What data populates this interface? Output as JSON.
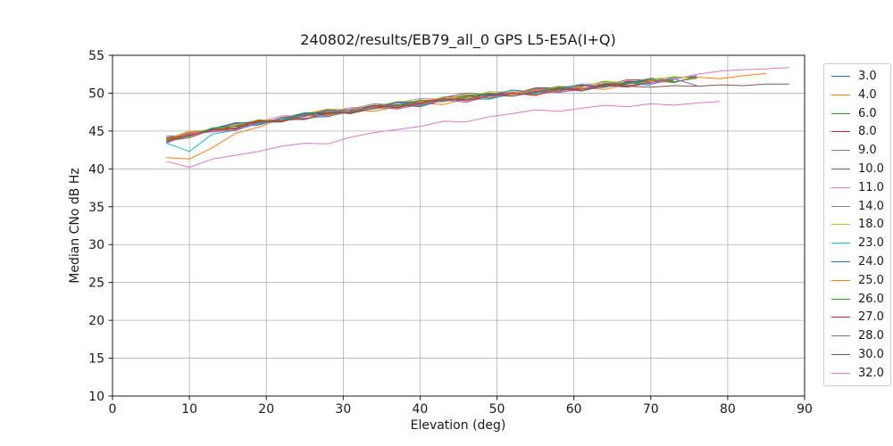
{
  "chart_data": {
    "type": "line",
    "title": "240802/results/EB79_all_0 GPS L5-E5A(I+Q)",
    "xlabel": "Elevation (deg)",
    "ylabel": "Median CNo dB Hz",
    "xlim": [
      0,
      90
    ],
    "ylim": [
      10,
      55
    ],
    "x_ticks": [
      0,
      10,
      20,
      30,
      40,
      50,
      60,
      70,
      80,
      90
    ],
    "y_ticks": [
      10,
      15,
      20,
      25,
      30,
      35,
      40,
      45,
      50,
      55
    ],
    "grid": true,
    "grid_color": "#b0b0b0",
    "legend_position": "right-outside",
    "x_start": 7,
    "x_step": 3,
    "series": [
      {
        "name": "3.0",
        "color": "#1f77b4",
        "y": [
          43.9,
          44.3,
          45.4,
          45.6,
          45.8,
          46.7,
          46.9,
          47.7,
          47.5,
          48.2,
          48.7,
          48.4,
          49.1,
          49.6,
          49.3,
          50.0,
          50.1,
          50.8,
          50.5,
          51.0,
          51.5,
          51.2,
          51.8
        ]
      },
      {
        "name": "4.0",
        "color": "#ff7f0e",
        "y": [
          41.5,
          41.3,
          42.8,
          44.7,
          45.5,
          46.7,
          46.6,
          47.2,
          47.8,
          47.6,
          48.2,
          48.7,
          48.5,
          49.3,
          49.4,
          50.0,
          49.8,
          50.3,
          50.7,
          50.5,
          51.2,
          51.7,
          51.4
        ]
      },
      {
        "name": "6.0",
        "color": "#2ca02c",
        "y": [
          43.6,
          44.8,
          45.1,
          46.1,
          46.0,
          46.7,
          47.4,
          47.1,
          47.8,
          48.4,
          48.1,
          48.9,
          49.1,
          49.8,
          49.6,
          50.0,
          50.5,
          50.3,
          50.9,
          51.5,
          51.3,
          51.4,
          52.1,
          52.1
        ]
      },
      {
        "name": "8.0",
        "color": "#d62728",
        "y": [
          43.7,
          44.9,
          44.9,
          45.7,
          46.4,
          46.2,
          47.0,
          47.5,
          47.3,
          48.2,
          48.3,
          49.0,
          48.9,
          49.4,
          49.9,
          49.6,
          50.3,
          50.9,
          50.6,
          50.8,
          51.6,
          51.5
        ]
      },
      {
        "name": "9.0",
        "color": "#9467bd",
        "y": [
          43.5,
          44.5,
          45.3,
          45.2,
          46.0,
          46.6,
          46.5,
          47.3,
          47.5,
          48.3,
          48.1,
          48.6,
          49.2,
          49.0,
          49.7,
          50.2,
          50.0,
          50.2,
          50.9,
          50.9,
          51.3,
          51.2,
          51.9,
          52.3
        ]
      },
      {
        "name": "10.0",
        "color": "#8c564b",
        "y": [
          44.3,
          44.4,
          45.3,
          46.0,
          45.9,
          46.8,
          47.1,
          47.8,
          47.7,
          48.3,
          48.8,
          48.6,
          49.4,
          50.0,
          49.8,
          49.9,
          50.7,
          50.7,
          51.0,
          51.0,
          51.8,
          51.7,
          51.6
        ]
      },
      {
        "name": "11.0",
        "color": "#e377c2",
        "y": [
          44.0,
          44.9,
          44.9,
          45.9,
          46.2,
          47.0,
          47.0,
          47.5,
          48.1,
          48.0,
          48.7,
          49.3,
          49.2,
          49.4,
          50.2,
          50.1,
          50.5,
          50.5,
          51.2,
          51.2,
          51.2,
          51.9,
          51.8,
          52.5,
          52.9,
          53.1,
          53.2,
          53.4
        ]
      },
      {
        "name": "14.0",
        "color": "#7f7f7f",
        "y": [
          43.5,
          44.7,
          45.1,
          46.0,
          46.0,
          46.6,
          47.3,
          47.1,
          47.9,
          48.6,
          48.4,
          48.6,
          49.5,
          49.5,
          49.9,
          49.8,
          50.6,
          50.6,
          50.5,
          51.3,
          51.3,
          52.0,
          51.6
        ]
      },
      {
        "name": "18.0",
        "color": "#bcbd22",
        "y": [
          43.9,
          45.0,
          45.1,
          45.8,
          46.5,
          46.4,
          47.3,
          47.9,
          47.8,
          48.1,
          48.9,
          48.9,
          49.4,
          49.4,
          50.2,
          50.1,
          50.1,
          50.9,
          50.8,
          51.6,
          51.3,
          51.8,
          52.2,
          51.9
        ]
      },
      {
        "name": "23.0",
        "color": "#17becf",
        "y": [
          43.4,
          42.3,
          44.6,
          45.1,
          46.0,
          46.7,
          46.7,
          46.9,
          47.8,
          47.9,
          48.3,
          48.3,
          49.2,
          49.2,
          49.2,
          49.9,
          49.9,
          50.7,
          50.3,
          50.9,
          51.4,
          51.0
        ]
      },
      {
        "name": "24.0",
        "color": "#1f77b4",
        "y": [
          44.1,
          44.3,
          45.3,
          46.1,
          46.1,
          46.4,
          47.4,
          47.4,
          47.9,
          48.0,
          48.8,
          48.8,
          48.9,
          49.7,
          49.7,
          50.4,
          50.1,
          50.7,
          51.1,
          50.8,
          51.4,
          51.8,
          51.4,
          52.2
        ]
      },
      {
        "name": "25.0",
        "color": "#ff7f0e",
        "y": [
          43.8,
          44.8,
          44.9,
          45.3,
          46.3,
          46.4,
          47.0,
          47.0,
          47.9,
          48.0,
          48.0,
          48.8,
          48.9,
          49.7,
          49.4,
          49.9,
          50.4,
          50.1,
          50.6,
          51.1,
          50.8,
          51.5,
          51.5,
          52.1,
          51.9,
          52.3,
          52.6
        ]
      },
      {
        "name": "26.0",
        "color": "#2ca02c",
        "y": [
          43.7,
          44.3,
          45.4,
          45.6,
          46.2,
          46.3,
          47.3,
          47.3,
          47.4,
          48.3,
          48.3,
          49.1,
          48.9,
          49.5,
          50.0,
          49.6,
          50.2,
          50.7,
          50.3,
          51.1,
          51.2,
          51.8,
          51.5,
          52.0
        ]
      },
      {
        "name": "27.0",
        "color": "#d62728",
        "y": [
          44.0,
          44.4,
          45.1,
          45.3,
          46.3,
          46.4,
          46.6,
          47.4,
          47.5,
          48.4,
          48.1,
          48.7,
          49.3,
          49.0,
          49.6,
          50.0,
          49.7,
          50.5,
          50.5,
          51.2,
          51.0,
          51.4
        ]
      },
      {
        "name": "28.0",
        "color": "#9467bd",
        "y": [
          43.4,
          44.6,
          44.9,
          45.1,
          46.1,
          46.2,
          47.2,
          46.9,
          47.6,
          48.2,
          47.9,
          48.5,
          49.1,
          48.8,
          49.6,
          49.6,
          50.3,
          50.1,
          50.5,
          51.0,
          50.8,
          51.4,
          51.9,
          51.0
        ]
      },
      {
        "name": "30.0",
        "color": "#8c564b",
        "y": [
          43.7,
          44.1,
          45.2,
          45.4,
          46.4,
          46.2,
          47.0,
          47.5,
          47.3,
          48.0,
          48.5,
          48.2,
          49.1,
          49.2,
          49.9,
          49.6,
          50.1,
          50.6,
          50.3,
          51.0,
          50.9,
          50.8,
          51.0,
          50.9,
          51.1,
          51.0,
          51.2,
          51.2
        ]
      },
      {
        "name": "32.0",
        "color": "#e377c2",
        "y": [
          41.0,
          40.2,
          41.3,
          41.8,
          42.3,
          43.0,
          43.4,
          43.3,
          44.2,
          44.8,
          45.2,
          45.6,
          46.3,
          46.2,
          46.9,
          47.3,
          47.8,
          47.6,
          48.0,
          48.4,
          48.2,
          48.6,
          48.4,
          48.7,
          48.9
        ]
      }
    ]
  }
}
